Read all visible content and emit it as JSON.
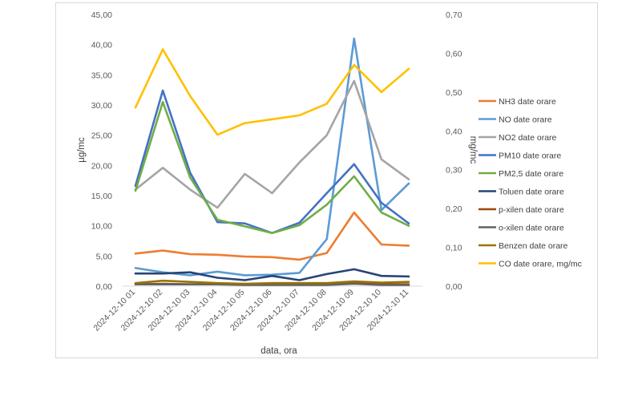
{
  "chart_data": {
    "type": "line",
    "title": "",
    "xlabel": "data, ora",
    "ylabel": "µg/mc",
    "y2label": "mg/mc",
    "ylim": [
      0,
      45
    ],
    "y2lim": [
      0,
      0.7
    ],
    "yticks": [
      "0,00",
      "5,00",
      "10,00",
      "15,00",
      "20,00",
      "25,00",
      "30,00",
      "35,00",
      "40,00",
      "45,00"
    ],
    "y2ticks": [
      "0,00",
      "0,10",
      "0,20",
      "0,30",
      "0,40",
      "0,50",
      "0,60",
      "0,70"
    ],
    "grid": false,
    "legend_position": "right",
    "categories": [
      "2024-12-10 01",
      "2024-12-10 02",
      "2024-12-10 03",
      "2024-12-10 04",
      "2024-12-10 05",
      "2024-12-10 06",
      "2024-12-10 07",
      "2024-12-10 08",
      "2024-12-10 09",
      "2024-12-10 10",
      "2024-12-10 11"
    ],
    "series": [
      {
        "name": "NH3 date orare",
        "color": "#ED7D31",
        "axis": "left",
        "values": [
          5.4,
          5.9,
          5.3,
          5.2,
          4.9,
          4.8,
          4.4,
          5.5,
          12.2,
          6.9,
          6.7
        ]
      },
      {
        "name": "NO date orare",
        "color": "#5B9BD5",
        "axis": "left",
        "values": [
          3.0,
          2.3,
          1.8,
          2.4,
          1.8,
          1.9,
          2.2,
          7.8,
          41.0,
          12.6,
          17.0
        ]
      },
      {
        "name": "NO2 date orare",
        "color": "#A5A5A5",
        "axis": "left",
        "values": [
          16.0,
          19.6,
          16.0,
          13.0,
          18.6,
          15.4,
          20.5,
          25.0,
          34.0,
          21.0,
          17.7
        ]
      },
      {
        "name": "PM10 date orare",
        "color": "#4472C4",
        "axis": "left",
        "values": [
          16.6,
          32.4,
          18.8,
          10.6,
          10.4,
          8.8,
          10.5,
          15.4,
          20.2,
          13.8,
          10.4
        ]
      },
      {
        "name": "PM2,5 date orare",
        "color": "#70AD47",
        "axis": "left",
        "values": [
          15.8,
          30.5,
          18.0,
          11.0,
          9.9,
          8.8,
          10.1,
          13.5,
          18.2,
          12.2,
          10.0
        ]
      },
      {
        "name": "Toluen date orare",
        "color": "#264478",
        "axis": "left",
        "values": [
          2.1,
          2.1,
          2.3,
          1.4,
          1.0,
          1.7,
          1.0,
          2.0,
          2.8,
          1.7,
          1.6
        ]
      },
      {
        "name": "p-xilen date orare",
        "color": "#9E480E",
        "axis": "left",
        "values": [
          0.3,
          0.4,
          0.3,
          0.3,
          0.3,
          0.3,
          0.3,
          0.3,
          0.5,
          0.3,
          0.3
        ]
      },
      {
        "name": "o-xilen date orare",
        "color": "#636363",
        "axis": "left",
        "values": [
          0.3,
          0.3,
          0.3,
          0.3,
          0.2,
          0.2,
          0.2,
          0.2,
          0.4,
          0.2,
          0.2
        ]
      },
      {
        "name": "Benzen date orare",
        "color": "#997300",
        "axis": "left",
        "values": [
          0.5,
          0.9,
          0.7,
          0.5,
          0.4,
          0.5,
          0.5,
          0.5,
          0.8,
          0.6,
          0.7
        ]
      },
      {
        "name": "CO date orare, mg/mc",
        "color": "#FFC000",
        "axis": "right",
        "values": [
          0.46,
          0.61,
          0.49,
          0.39,
          0.42,
          0.43,
          0.44,
          0.47,
          0.57,
          0.5,
          0.56
        ]
      }
    ]
  }
}
